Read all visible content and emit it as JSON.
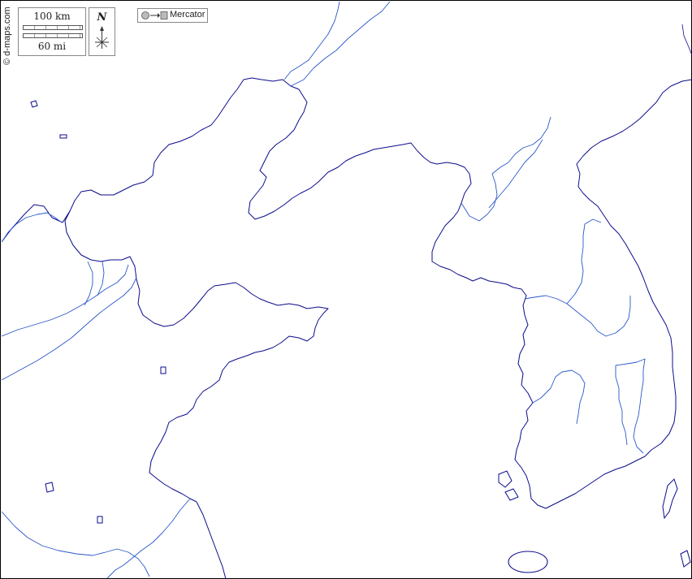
{
  "map": {
    "credit": "© d-maps.com",
    "scale": {
      "km_label": "100 km",
      "mi_label": "60 mi"
    },
    "north": {
      "label": "N",
      "icon": "compass-rose-icon"
    },
    "projection": {
      "label": "Mercator",
      "icon": "projection-globe-to-plane-icon"
    },
    "colors": {
      "coastline": "#0b0b8c",
      "rivers": "#2a57c9",
      "background": "#ffffff",
      "frame": "#000000"
    }
  }
}
